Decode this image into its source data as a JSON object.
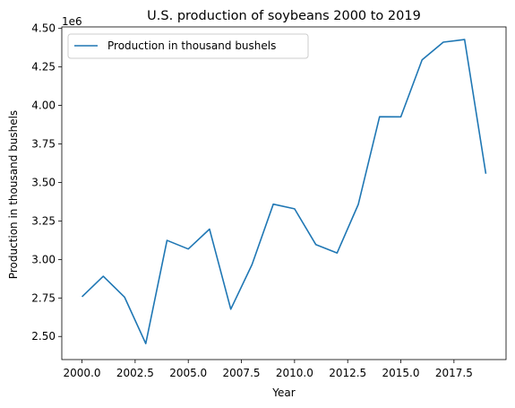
{
  "chart_data": {
    "type": "line",
    "title": "U.S. production of soybeans 2000 to 2019",
    "xlabel": "Year",
    "ylabel": "Production in thousand bushels",
    "y_offset_label": "1e6",
    "y_scale_factor": 1000000,
    "xlim": [
      1999.05,
      2019.95
    ],
    "ylim": [
      2350000,
      4510000
    ],
    "x_ticks": [
      2000.0,
      2002.5,
      2005.0,
      2007.5,
      2010.0,
      2012.5,
      2015.0,
      2017.5
    ],
    "x_tick_labels": [
      "2000.0",
      "2002.5",
      "2005.0",
      "2007.5",
      "2010.0",
      "2012.5",
      "2015.0",
      "2017.5"
    ],
    "y_ticks": [
      2500000,
      2750000,
      3000000,
      3250000,
      3500000,
      3750000,
      4000000,
      4250000,
      4500000
    ],
    "y_tick_labels": [
      "2.50",
      "2.75",
      "3.00",
      "3.25",
      "3.50",
      "3.75",
      "4.00",
      "4.25",
      "4.50"
    ],
    "grid": false,
    "legend_position": "upper-left",
    "series": [
      {
        "name": "Production in thousand bushels",
        "color": "#1f77b4",
        "x": [
          2000,
          2001,
          2002,
          2003,
          2004,
          2005,
          2006,
          2007,
          2008,
          2009,
          2010,
          2011,
          2012,
          2013,
          2014,
          2015,
          2016,
          2017,
          2018,
          2019
        ],
        "y": [
          2758000,
          2891000,
          2756000,
          2454000,
          3124000,
          3068000,
          3197000,
          2677000,
          2967000,
          3359000,
          3329000,
          3097000,
          3042000,
          3358000,
          3927000,
          3926000,
          4296000,
          4411000,
          4428000,
          3557000
        ]
      }
    ]
  }
}
